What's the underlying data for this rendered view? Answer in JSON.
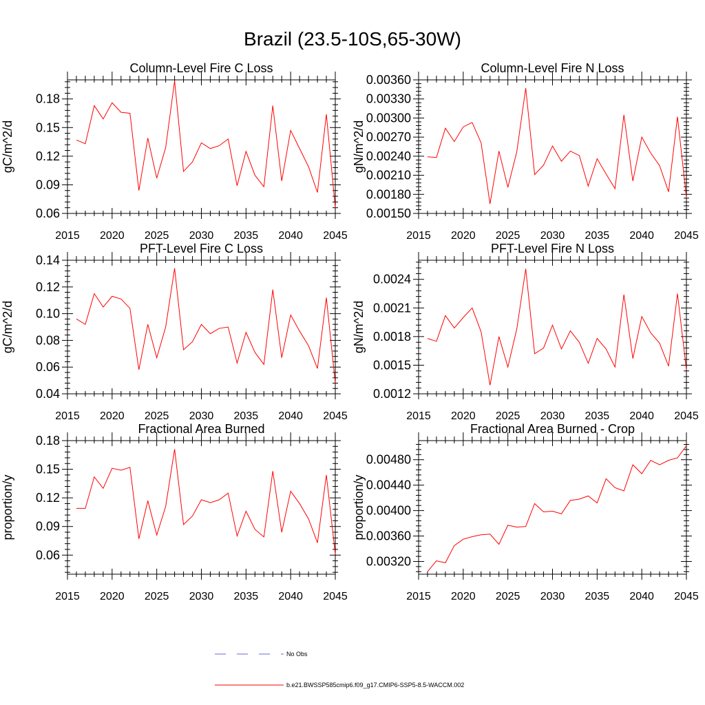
{
  "page_title": "Brazil (23.5-10S,65-30W)",
  "legend": {
    "no_obs_label": "No Obs",
    "no_obs_color": "#6a6ad8",
    "case_label": "b.e21.BWSSP585cmip6.f09_g17.CMIP6-SSP5-8.5-WACCM.002",
    "case_color": "#ff0000"
  },
  "chart_data": [
    {
      "type": "line",
      "title": "Column-Level Fire C Loss",
      "ylabel": "gC/m^2/d",
      "xlim": [
        2015,
        2045
      ],
      "ylim": [
        0.06,
        0.2
      ],
      "xticks": [
        "2015",
        "2020",
        "2025",
        "2030",
        "2035",
        "2040",
        "2045"
      ],
      "yticks": [
        "0.06",
        "0.09",
        "0.12",
        "0.15",
        "0.18"
      ],
      "x": [
        2016,
        2017,
        2018,
        2019,
        2020,
        2021,
        2022,
        2023,
        2024,
        2025,
        2026,
        2027,
        2028,
        2029,
        2030,
        2031,
        2032,
        2033,
        2034,
        2035,
        2036,
        2037,
        2038,
        2039,
        2040,
        2041,
        2042,
        2043,
        2044,
        2045
      ],
      "series": [
        {
          "name": "b.e21.BWSSP585cmip6.f09_g17.CMIP6-SSP5-8.5-WACCM.002",
          "color": "#ff0000",
          "values": [
            0.137,
            0.133,
            0.173,
            0.159,
            0.176,
            0.166,
            0.165,
            0.084,
            0.139,
            0.097,
            0.129,
            0.199,
            0.104,
            0.114,
            0.134,
            0.128,
            0.131,
            0.138,
            0.089,
            0.125,
            0.1,
            0.088,
            0.173,
            0.094,
            0.147,
            0.128,
            0.109,
            0.082,
            0.164,
            0.066
          ]
        }
      ]
    },
    {
      "type": "line",
      "title": "Column-Level Fire N Loss",
      "ylabel": "gN/m^2/d",
      "xlim": [
        2015,
        2045
      ],
      "ylim": [
        0.0015,
        0.0036
      ],
      "xticks": [
        "2015",
        "2020",
        "2025",
        "2030",
        "2035",
        "2040",
        "2045"
      ],
      "yticks": [
        "0.00150",
        "0.00180",
        "0.00210",
        "0.00240",
        "0.00270",
        "0.00300",
        "0.00330",
        "0.00360"
      ],
      "x": [
        2016,
        2017,
        2018,
        2019,
        2020,
        2021,
        2022,
        2023,
        2024,
        2025,
        2026,
        2027,
        2028,
        2029,
        2030,
        2031,
        2032,
        2033,
        2034,
        2035,
        2036,
        2037,
        2038,
        2039,
        2040,
        2041,
        2042,
        2043,
        2044,
        2045
      ],
      "series": [
        {
          "name": "b.e21.BWSSP585cmip6.f09_g17.CMIP6-SSP5-8.5-WACCM.002",
          "color": "#ff0000",
          "values": [
            0.00239,
            0.00238,
            0.00284,
            0.00263,
            0.00286,
            0.00293,
            0.00261,
            0.00165,
            0.00248,
            0.00191,
            0.00247,
            0.00347,
            0.00211,
            0.00226,
            0.00256,
            0.00232,
            0.00248,
            0.00241,
            0.00193,
            0.00236,
            0.00212,
            0.00189,
            0.00305,
            0.00201,
            0.0027,
            0.00245,
            0.00225,
            0.00184,
            0.00302,
            0.00175
          ]
        }
      ]
    },
    {
      "type": "line",
      "title": "PFT-Level Fire C Loss",
      "ylabel": "gC/m^2/d",
      "xlim": [
        2015,
        2045
      ],
      "ylim": [
        0.04,
        0.14
      ],
      "xticks": [
        "2015",
        "2020",
        "2025",
        "2030",
        "2035",
        "2040",
        "2045"
      ],
      "yticks": [
        "0.04",
        "0.06",
        "0.08",
        "0.10",
        "0.12",
        "0.14"
      ],
      "x": [
        2016,
        2017,
        2018,
        2019,
        2020,
        2021,
        2022,
        2023,
        2024,
        2025,
        2026,
        2027,
        2028,
        2029,
        2030,
        2031,
        2032,
        2033,
        2034,
        2035,
        2036,
        2037,
        2038,
        2039,
        2040,
        2041,
        2042,
        2043,
        2044,
        2045
      ],
      "series": [
        {
          "name": "b.e21.BWSSP585cmip6.f09_g17.CMIP6-SSP5-8.5-WACCM.002",
          "color": "#ff0000",
          "values": [
            0.096,
            0.092,
            0.115,
            0.105,
            0.113,
            0.111,
            0.104,
            0.058,
            0.092,
            0.067,
            0.09,
            0.134,
            0.073,
            0.079,
            0.092,
            0.085,
            0.089,
            0.09,
            0.063,
            0.086,
            0.071,
            0.062,
            0.118,
            0.067,
            0.099,
            0.087,
            0.076,
            0.059,
            0.112,
            0.048
          ]
        }
      ]
    },
    {
      "type": "line",
      "title": "PFT-Level Fire N Loss",
      "ylabel": "gN/m^2/d",
      "xlim": [
        2015,
        2045
      ],
      "ylim": [
        0.0012,
        0.0026
      ],
      "xticks": [
        "2015",
        "2020",
        "2025",
        "2030",
        "2035",
        "2040",
        "2045"
      ],
      "yticks": [
        "0.0012",
        "0.0015",
        "0.0018",
        "0.0021",
        "0.0024"
      ],
      "x": [
        2016,
        2017,
        2018,
        2019,
        2020,
        2021,
        2022,
        2023,
        2024,
        2025,
        2026,
        2027,
        2028,
        2029,
        2030,
        2031,
        2032,
        2033,
        2034,
        2035,
        2036,
        2037,
        2038,
        2039,
        2040,
        2041,
        2042,
        2043,
        2044,
        2045
      ],
      "series": [
        {
          "name": "b.e21.BWSSP585cmip6.f09_g17.CMIP6-SSP5-8.5-WACCM.002",
          "color": "#ff0000",
          "values": [
            0.00178,
            0.00175,
            0.00202,
            0.00189,
            0.002,
            0.0021,
            0.00185,
            0.00129,
            0.0018,
            0.00148,
            0.00188,
            0.00251,
            0.00162,
            0.00168,
            0.00192,
            0.00167,
            0.00186,
            0.00174,
            0.00152,
            0.00178,
            0.00167,
            0.00148,
            0.00224,
            0.00157,
            0.00201,
            0.00184,
            0.00173,
            0.00149,
            0.00225,
            0.00145
          ]
        }
      ]
    },
    {
      "type": "line",
      "title": "Fractional Area Burned",
      "ylabel": "proportion/y",
      "xlim": [
        2015,
        2045
      ],
      "ylim": [
        0.04,
        0.18
      ],
      "xticks": [
        "2015",
        "2020",
        "2025",
        "2030",
        "2035",
        "2040",
        "2045"
      ],
      "yticks": [
        "0.06",
        "0.09",
        "0.12",
        "0.15",
        "0.18"
      ],
      "x": [
        2016,
        2017,
        2018,
        2019,
        2020,
        2021,
        2022,
        2023,
        2024,
        2025,
        2026,
        2027,
        2028,
        2029,
        2030,
        2031,
        2032,
        2033,
        2034,
        2035,
        2036,
        2037,
        2038,
        2039,
        2040,
        2041,
        2042,
        2043,
        2044,
        2045
      ],
      "series": [
        {
          "name": "b.e21.BWSSP585cmip6.f09_g17.CMIP6-SSP5-8.5-WACCM.002",
          "color": "#ff0000",
          "values": [
            0.109,
            0.109,
            0.142,
            0.13,
            0.151,
            0.149,
            0.152,
            0.077,
            0.117,
            0.081,
            0.111,
            0.171,
            0.092,
            0.101,
            0.118,
            0.115,
            0.118,
            0.125,
            0.08,
            0.106,
            0.087,
            0.079,
            0.148,
            0.084,
            0.127,
            0.114,
            0.098,
            0.073,
            0.144,
            0.061
          ]
        }
      ]
    },
    {
      "type": "line",
      "title": "Fractional Area Burned - Crop",
      "ylabel": "proportion/y",
      "xlim": [
        2015,
        2045
      ],
      "ylim": [
        0.003,
        0.0051
      ],
      "xticks": [
        "2015",
        "2020",
        "2025",
        "2030",
        "2035",
        "2040",
        "2045"
      ],
      "yticks": [
        "0.00320",
        "0.00360",
        "0.00400",
        "0.00440",
        "0.00480"
      ],
      "x": [
        2016,
        2017,
        2018,
        2019,
        2020,
        2021,
        2022,
        2023,
        2024,
        2025,
        2026,
        2027,
        2028,
        2029,
        2030,
        2031,
        2032,
        2033,
        2034,
        2035,
        2036,
        2037,
        2038,
        2039,
        2040,
        2041,
        2042,
        2043,
        2044,
        2045
      ],
      "series": [
        {
          "name": "b.e21.BWSSP585cmip6.f09_g17.CMIP6-SSP5-8.5-WACCM.002",
          "color": "#ff0000",
          "values": [
            0.00304,
            0.00321,
            0.00318,
            0.00345,
            0.00355,
            0.00359,
            0.00362,
            0.00363,
            0.00347,
            0.00377,
            0.00374,
            0.00375,
            0.00411,
            0.00398,
            0.00399,
            0.00395,
            0.00416,
            0.00418,
            0.00423,
            0.00412,
            0.0045,
            0.00436,
            0.00431,
            0.00472,
            0.00458,
            0.00479,
            0.00472,
            0.00479,
            0.00483,
            0.00502
          ]
        }
      ]
    }
  ]
}
